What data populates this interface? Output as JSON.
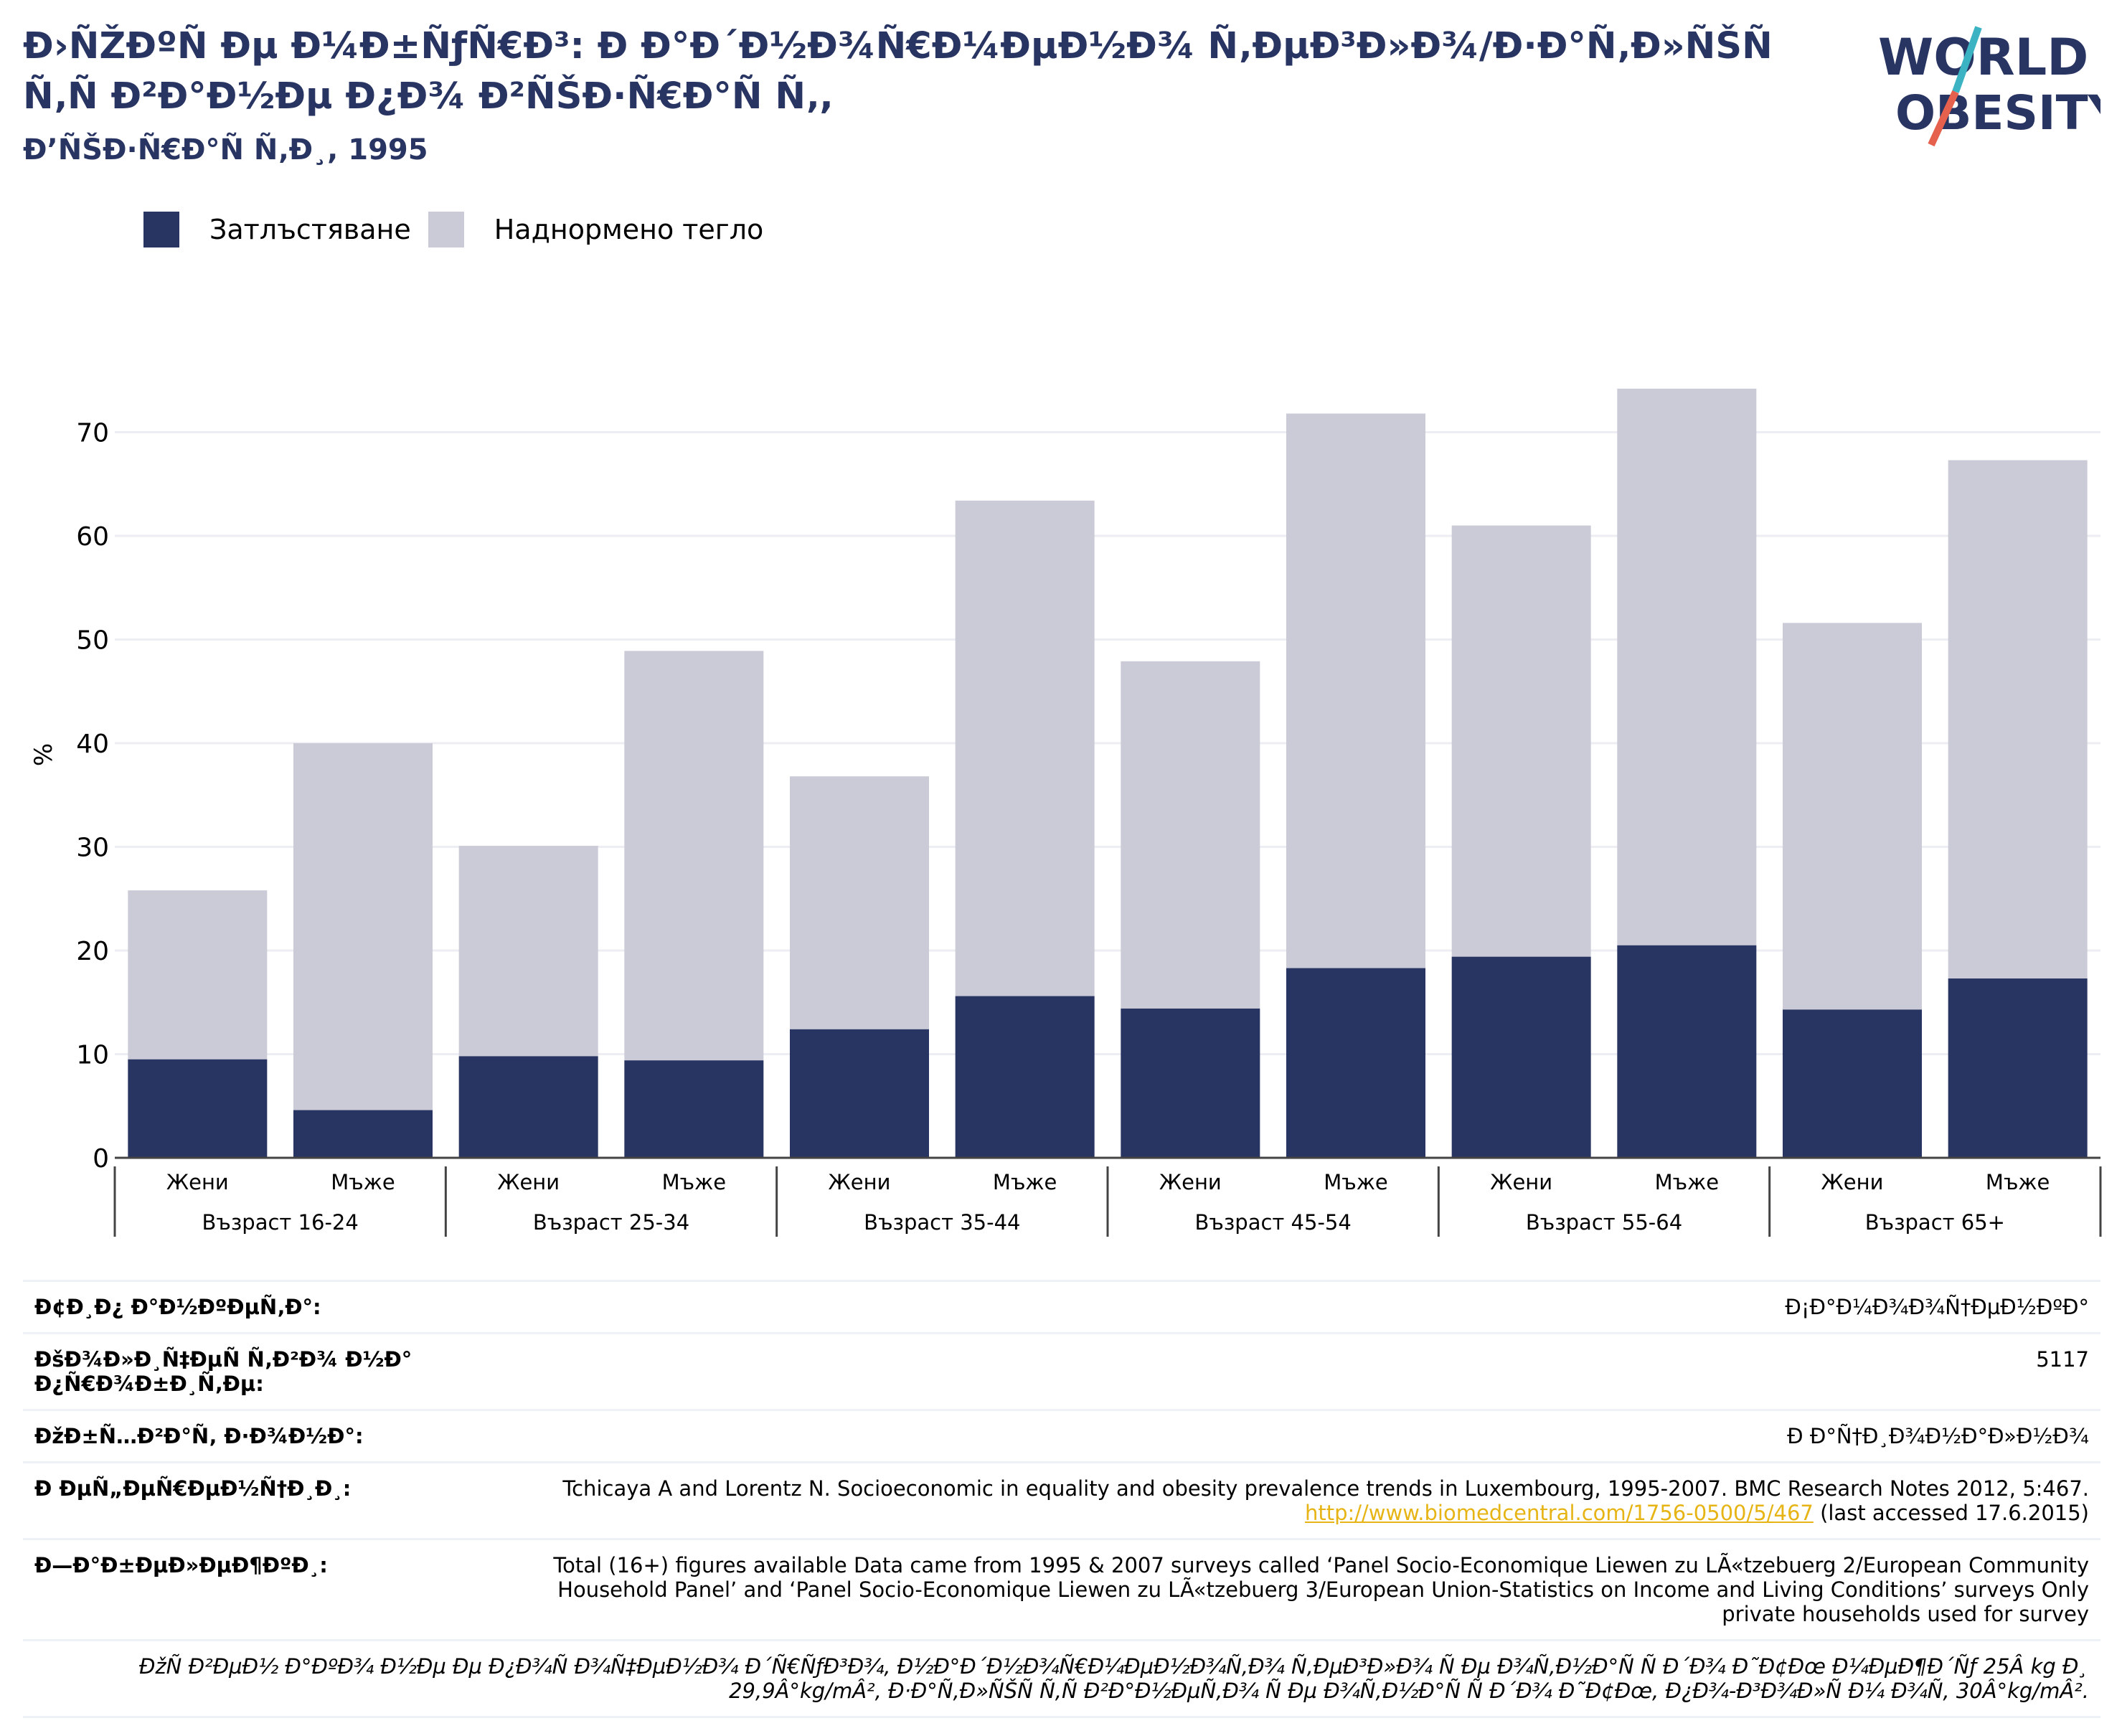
{
  "header": {
    "title": "Ð›ÑŽÐºÑ Ðµ Ð¼Ð±ÑƒÑ€Ð³: Ð Ð°Ð´Ð½Ð¾Ñ€Ð¼ÐµÐ½Ð¾ Ñ‚ÐµÐ³Ð»Ð¾/Ð·Ð°Ñ‚Ð»ÑŠÑ Ñ‚Ñ Ð²Ð°Ð½Ðµ Ð¿Ð¾ Ð²ÑŠÐ·Ñ€Ð°Ñ Ñ‚,",
    "subtitle": "Ð’ÑŠÐ·Ñ€Ð°Ñ Ñ‚Ð¸, 1995",
    "logo_line1": "WORLD",
    "logo_line2": "OBESITY"
  },
  "colors": {
    "obesity": "#283462",
    "overweight": "#cacbd7",
    "title": "#283462",
    "link": "#e7b416",
    "logo_slash_teal": "#3bb3c3",
    "logo_slash_red": "#e5604d"
  },
  "legend": [
    "Затлъстяване",
    "Наднормено тегло"
  ],
  "chart_data": {
    "type": "bar",
    "stacked": true,
    "ylabel": "%",
    "ylim": [
      0,
      75
    ],
    "yticks": [
      0,
      10,
      20,
      30,
      40,
      50,
      60,
      70
    ],
    "grid": true,
    "legend_position": "top-left",
    "groups": [
      "Възраст 16-24",
      "Възраст 25-34",
      "Възраст 35-44",
      "Възраст 45-54",
      "Възраст 55-64",
      "Възраст 65+"
    ],
    "categories": [
      "Жени",
      "Мъже",
      "Жени",
      "Мъже",
      "Жени",
      "Мъже",
      "Жени",
      "Мъже",
      "Жени",
      "Мъже",
      "Жени",
      "Мъже"
    ],
    "series": [
      {
        "name": "Затлъстяване",
        "values": [
          9.5,
          4.6,
          9.8,
          9.4,
          12.4,
          15.6,
          14.4,
          18.3,
          19.4,
          20.5,
          14.3,
          17.3
        ]
      },
      {
        "name": "Наднормено тегло",
        "values": [
          16.3,
          35.4,
          20.3,
          39.5,
          24.4,
          47.8,
          33.5,
          53.5,
          41.6,
          53.7,
          37.3,
          50.0
        ]
      }
    ]
  },
  "meta": {
    "rows": [
      {
        "key": "Ð¢Ð¸Ð¿ Ð°Ð½ÐºÐµÑ‚Ð°:",
        "value": "Ð¡Ð°Ð¼Ð¾Ð¾Ñ†ÐµÐ½ÐºÐ°"
      },
      {
        "key": "ÐšÐ¾Ð»Ð¸Ñ‡ÐµÑ Ñ‚Ð²Ð¾ Ð½Ð° Ð¿Ñ€Ð¾Ð±Ð¸Ñ‚Ðµ:",
        "value": "5117"
      },
      {
        "key": "ÐžÐ±Ñ…Ð²Ð°Ñ‚ Ð·Ð¾Ð½Ð°:",
        "value": "Ð Ð°Ñ†Ð¸Ð¾Ð½Ð°Ð»Ð½Ð¾"
      }
    ],
    "reference_key": "Ð ÐµÑ„ÐµÑ€ÐµÐ½Ñ†Ð¸Ð¸:",
    "reference_text": "Tchicaya A and Lorentz N. Socioeconomic in equality and obesity prevalence trends in Luxembourg, 1995-2007. BMC Research Notes 2012, 5:467.",
    "reference_link": "http://www.biomedcentral.com/1756-0500/5/467",
    "reference_accessed": "(last accessed 17.6.2015)",
    "notes_key": "Ð—Ð°Ð±ÐµÐ»ÐµÐ¶ÐºÐ¸:",
    "notes_value": "Total (16+) figures available Data came from 1995 & 2007 surveys called ‘Panel Socio-Economique Liewen zu LÃ«tzebuerg 2/European Community Household Panel’ and ‘Panel Socio-Economique Liewen zu LÃ«tzebuerg 3/European Union-Statistics on Income and Living Conditions’ surveys Only private households used for survey",
    "footnote": "ÐžÑ Ð²ÐµÐ½ Ð°ÐºÐ¾ Ð½Ðµ Ðµ Ð¿Ð¾Ñ Ð¾Ñ‡ÐµÐ½Ð¾ Ð´Ñ€ÑƒÐ³Ð¾, Ð½Ð°Ð´Ð½Ð¾Ñ€Ð¼ÐµÐ½Ð¾Ñ‚Ð¾ Ñ‚ÐµÐ³Ð»Ð¾ Ñ Ðµ Ð¾Ñ‚Ð½Ð°Ñ Ñ  Ð´Ð¾ Ð˜Ð¢Ðœ Ð¼ÐµÐ¶Ð´Ñƒ 25Â kg Ð¸ 29,9Â°kg/mÂ², Ð·Ð°Ñ‚Ð»ÑŠÑ Ñ‚Ñ Ð²Ð°Ð½ÐµÑ‚Ð¾ Ñ Ðµ Ð¾Ñ‚Ð½Ð°Ñ Ñ  Ð´Ð¾ Ð˜Ð¢Ðœ, Ð¿Ð¾-Ð³Ð¾Ð»Ñ Ð¼ Ð¾Ñ‚ 30Â°kg/mÂ²."
  }
}
